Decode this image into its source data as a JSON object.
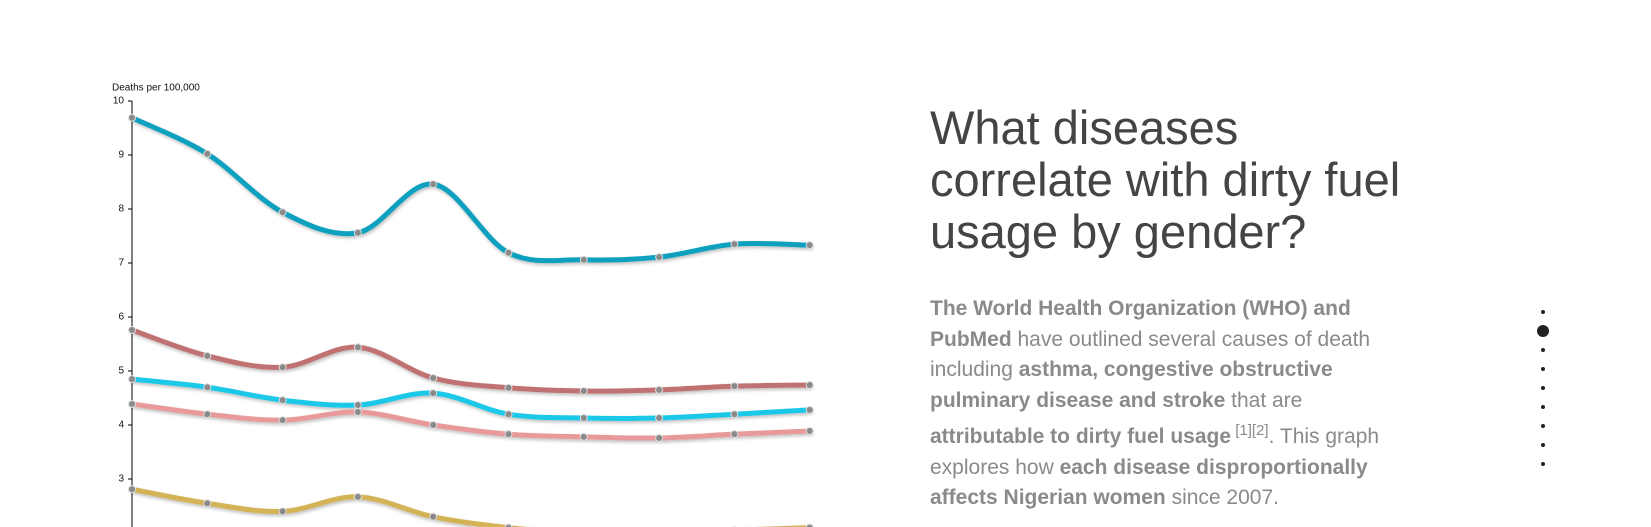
{
  "chart_data": {
    "type": "line",
    "y_label": "Deaths per 100,000",
    "categories": [
      null,
      null,
      null,
      null,
      null,
      null,
      null,
      null,
      null,
      null
    ],
    "series": [
      {
        "color": "#0aa0bf",
        "values": [
          9.69,
          9.02,
          7.94,
          7.56,
          8.46,
          7.19,
          7.06,
          7.11,
          7.35,
          7.33
        ]
      },
      {
        "color": "#c07272",
        "values": [
          5.76,
          5.28,
          5.07,
          5.44,
          4.87,
          4.69,
          4.63,
          4.65,
          4.72,
          4.74
        ]
      },
      {
        "color": "#1ec8e8",
        "values": [
          4.85,
          4.7,
          4.46,
          4.37,
          4.59,
          4.2,
          4.13,
          4.13,
          4.2,
          4.28
        ]
      },
      {
        "color": "#e89a9a",
        "values": [
          4.39,
          4.2,
          4.09,
          4.24,
          4.0,
          3.83,
          3.78,
          3.76,
          3.83,
          3.89
        ]
      },
      {
        "color": "#d4b256",
        "values": [
          2.81,
          2.55,
          2.4,
          2.67,
          2.3,
          2.1,
          2.0,
          2.0,
          2.05,
          2.1
        ]
      }
    ],
    "ylim": [
      0,
      10
    ],
    "yticks": [
      3,
      4,
      5,
      6,
      7,
      8,
      9,
      10
    ],
    "grid": false
  },
  "text": {
    "title": "What diseases correlate with dirty fuel usage by gender?",
    "paragraph": [
      {
        "text": "The World Health Organization (WHO) and PubMed",
        "bold": true
      },
      {
        "text": " have outlined several causes of death including ",
        "bold": false
      },
      {
        "text": "asthma, congestive obstructive pulminary disease and stroke",
        "bold": true
      },
      {
        "text": " that are ",
        "bold": false
      },
      {
        "text": "attributable to dirty fuel usage",
        "bold": true
      },
      {
        "text": " [1][2]",
        "bold": false,
        "sup": true
      },
      {
        "text": ". This graph explores how ",
        "bold": false
      },
      {
        "text": "each disease disproportionally affects Nigerian women",
        "bold": true
      },
      {
        "text": " since 2007.",
        "bold": false
      }
    ]
  }
}
